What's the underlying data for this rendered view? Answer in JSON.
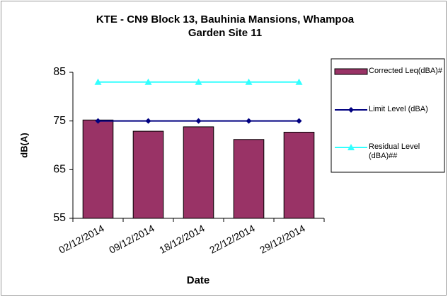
{
  "chart_data": {
    "type": "bar",
    "title": [
      "KTE - CN9 Block 13, Bauhinia Mansions, Whampoa",
      "Garden Site 11"
    ],
    "x_label": "Date",
    "y_label": "dB(A)",
    "categories": [
      "02/12/2014",
      "09/12/2014",
      "18/12/2014",
      "22/12/2014",
      "29/12/2014"
    ],
    "series": [
      {
        "name": "Corrected Leq(dBA)#",
        "type": "bar",
        "color": "#993366",
        "values": [
          75.2,
          72.9,
          73.8,
          71.2,
          72.7
        ]
      },
      {
        "name": "Limit Level (dBA)",
        "type": "line",
        "marker": "diamond",
        "color": "#000080",
        "values": [
          75,
          75,
          75,
          75,
          75
        ]
      },
      {
        "name": "Residual Level (dBA)##",
        "type": "line",
        "marker": "triangle",
        "color": "#33ffff",
        "values": [
          83,
          83,
          83,
          83,
          83
        ]
      }
    ],
    "ylim": [
      55,
      85
    ],
    "yticks": [
      55,
      65,
      75,
      85
    ],
    "grid": false,
    "legend": "right"
  }
}
